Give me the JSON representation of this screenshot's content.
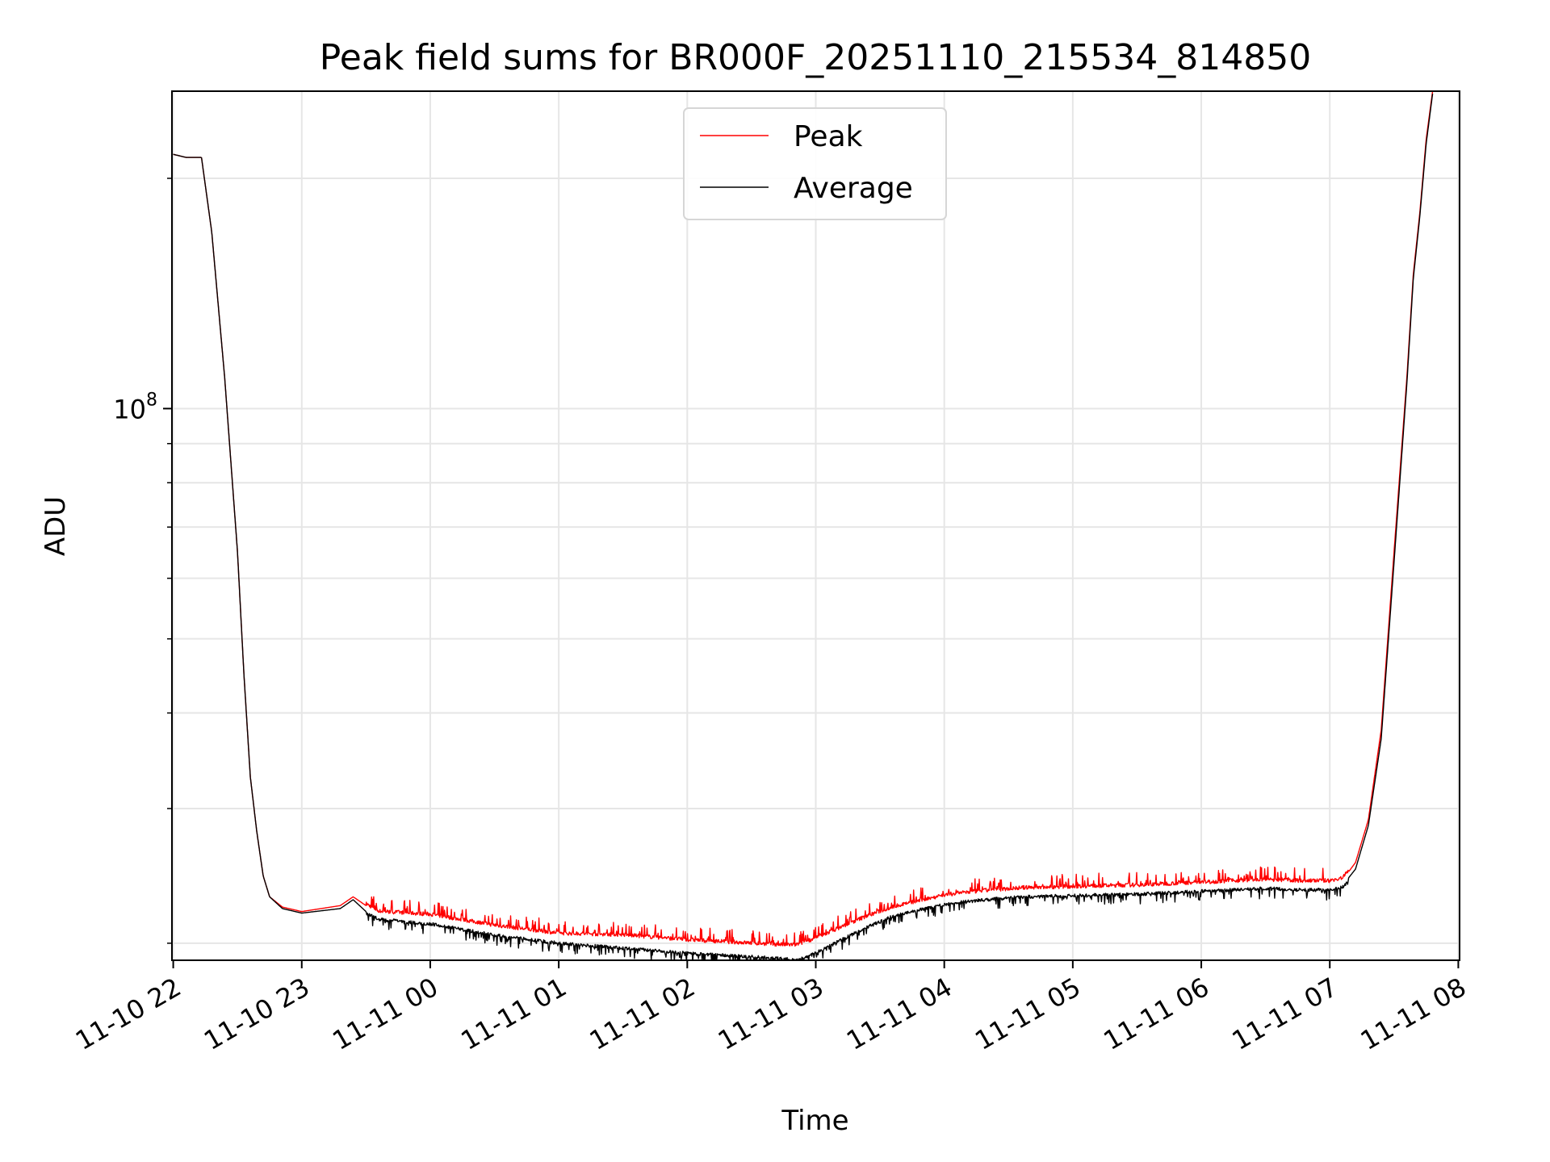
{
  "chart_data": {
    "type": "line",
    "title": "Peak field sums for BR000F_20251110_215534_814850",
    "xlabel": "Time",
    "ylabel": "ADU",
    "y_scale": "log",
    "ylim": [
      19000000,
      260000000
    ],
    "xlim_hours": [
      -0.01,
      10.01
    ],
    "x_ticks": [
      {
        "label": "11-10 22",
        "hours": 0
      },
      {
        "label": "11-10 23",
        "hours": 1
      },
      {
        "label": "11-11 00",
        "hours": 2
      },
      {
        "label": "11-11 01",
        "hours": 3
      },
      {
        "label": "11-11 02",
        "hours": 4
      },
      {
        "label": "11-11 03",
        "hours": 5
      },
      {
        "label": "11-11 04",
        "hours": 6
      },
      {
        "label": "11-11 05",
        "hours": 7
      },
      {
        "label": "11-11 06",
        "hours": 8
      },
      {
        "label": "11-11 07",
        "hours": 9
      },
      {
        "label": "11-11 08",
        "hours": 10
      }
    ],
    "y_major_ticks": [
      {
        "base": "10",
        "exp": "8",
        "value": 100000000
      }
    ],
    "y_minor_ticks": [
      20000000,
      30000000,
      40000000,
      50000000,
      60000000,
      70000000,
      80000000,
      90000000,
      200000000
    ],
    "grid": true,
    "legend_position": "top-center",
    "series": [
      {
        "name": "Peak",
        "color": "#ff0000",
        "x_hours": [
          0.0,
          0.1,
          0.22,
          0.3,
          0.4,
          0.5,
          0.55,
          0.6,
          0.65,
          0.7,
          0.75,
          0.85,
          1.0,
          1.3,
          1.4,
          1.5,
          1.6,
          2.0,
          2.5,
          3.0,
          3.5,
          4.0,
          4.5,
          4.75,
          4.85,
          5.0,
          5.2,
          5.4,
          5.6,
          5.8,
          6.0,
          6.3,
          6.6,
          7.0,
          7.5,
          8.0,
          8.5,
          8.8,
          9.0,
          9.1,
          9.2,
          9.3,
          9.4,
          9.5,
          9.6,
          9.65,
          9.7,
          9.75,
          9.8
        ],
        "values": [
          215000000,
          213000000,
          213000000,
          170000000,
          110000000,
          65000000,
          45000000,
          33000000,
          28000000,
          24500000,
          23000000,
          22300000,
          22000000,
          22400000,
          23000000,
          22400000,
          21900000,
          21700000,
          21000000,
          20500000,
          20400000,
          20100000,
          19900000,
          19800000,
          19800000,
          20200000,
          20900000,
          21600000,
          22200000,
          22600000,
          23000000,
          23300000,
          23500000,
          23600000,
          23700000,
          23900000,
          24100000,
          24000000,
          24000000,
          24200000,
          25500000,
          29000000,
          38000000,
          65000000,
          110000000,
          150000000,
          180000000,
          225000000,
          260000000
        ]
      },
      {
        "name": "Average",
        "color": "#000000",
        "x_hours": [
          0.0,
          0.1,
          0.22,
          0.3,
          0.4,
          0.5,
          0.55,
          0.6,
          0.65,
          0.7,
          0.75,
          0.85,
          1.0,
          1.3,
          1.4,
          1.5,
          1.6,
          2.0,
          2.5,
          3.0,
          3.5,
          4.0,
          4.5,
          4.75,
          4.85,
          5.0,
          5.2,
          5.4,
          5.6,
          5.8,
          6.0,
          6.3,
          6.6,
          7.0,
          7.5,
          8.0,
          8.5,
          8.8,
          9.0,
          9.1,
          9.2,
          9.3,
          9.4,
          9.5,
          9.6,
          9.65,
          9.7,
          9.75,
          9.8
        ],
        "values": [
          215000000,
          213000000,
          213000000,
          170000000,
          110000000,
          65000000,
          45000000,
          33000000,
          28000000,
          24500000,
          23000000,
          22200000,
          21900000,
          22200000,
          22800000,
          22000000,
          21600000,
          21300000,
          20600000,
          20100000,
          19800000,
          19500000,
          19300000,
          19200000,
          19100000,
          19500000,
          20300000,
          21100000,
          21800000,
          22200000,
          22600000,
          22900000,
          23100000,
          23200000,
          23300000,
          23500000,
          23700000,
          23600000,
          23600000,
          23800000,
          25000000,
          28500000,
          37000000,
          63000000,
          108000000,
          148000000,
          178000000,
          222000000,
          258000000
        ]
      }
    ]
  }
}
